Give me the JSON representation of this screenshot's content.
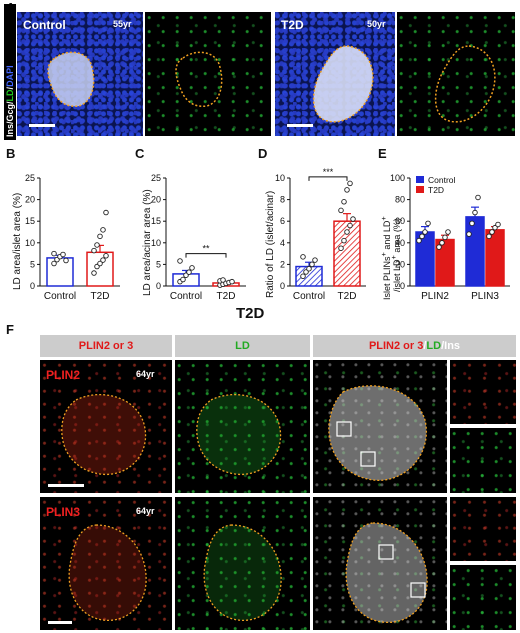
{
  "panels": {
    "A": "A",
    "B": "B",
    "C": "C",
    "D": "D",
    "E": "E",
    "F": "F"
  },
  "panelA": {
    "side_label_ins": "Ins",
    "side_label_gcg": "Gcg",
    "side_label_ld": "LD",
    "side_label_dapi": "DAPI",
    "control_label": "Control",
    "control_age": "55yr",
    "t2d_label": "T2D",
    "t2d_age": "50yr"
  },
  "panelF": {
    "title": "T2D",
    "col1": "PLIN2 or 3",
    "col2": "LD",
    "col3_a": "PLIN2 or 3",
    "col3_b": "LD",
    "col3_c": "Ins",
    "row1_label": "PLIN2",
    "row1_age": "64yr",
    "row2_label": "PLIN3",
    "row2_age": "64yr"
  },
  "colors": {
    "control": "#1f2bd6",
    "t2d": "#e01919",
    "outline": "#f0a020"
  },
  "chart_data": [
    {
      "id": "B",
      "type": "bar",
      "ylabel": "LD area/islet area (%)",
      "categories": [
        "Control",
        "T2D"
      ],
      "values": [
        6.5,
        7.8
      ],
      "errors": [
        0.6,
        1.6
      ],
      "ylim": [
        0,
        25
      ],
      "yticks": [
        0,
        5,
        10,
        15,
        20,
        25
      ],
      "points": [
        [
          5.2,
          6.1,
          6.8,
          7.3,
          5.9,
          7.5
        ],
        [
          3.0,
          4.5,
          5.2,
          6.0,
          7.0,
          8.2,
          9.5,
          11.5,
          13.0,
          17.0
        ]
      ]
    },
    {
      "id": "C",
      "type": "bar",
      "ylabel": "LD area/acinar area (%)",
      "categories": [
        "Control",
        "T2D"
      ],
      "values": [
        2.8,
        0.7
      ],
      "errors": [
        0.8,
        0.2
      ],
      "ylim": [
        0,
        25
      ],
      "yticks": [
        0,
        5,
        10,
        15,
        20,
        25
      ],
      "points": [
        [
          1.0,
          1.5,
          2.5,
          3.2,
          4.2,
          5.8
        ],
        [
          0.2,
          0.4,
          0.6,
          0.8,
          1.0,
          1.2,
          1.4
        ]
      ],
      "significance": "**"
    },
    {
      "id": "D",
      "type": "bar",
      "ylabel": "Ratio of LD (islet/acinar)",
      "categories": [
        "Control",
        "T2D"
      ],
      "values": [
        1.8,
        6.0
      ],
      "errors": [
        0.4,
        0.7
      ],
      "ylim": [
        0,
        10
      ],
      "yticks": [
        0,
        2,
        4,
        6,
        8,
        10
      ],
      "points": [
        [
          0.9,
          1.3,
          1.6,
          2.0,
          2.4,
          2.7
        ],
        [
          3.5,
          4.2,
          5.0,
          5.6,
          6.2,
          7.0,
          7.8,
          8.9,
          9.5
        ]
      ],
      "significance": "***"
    },
    {
      "id": "E",
      "type": "bar",
      "ylabel": "Islet PLINs+ and LD+ /islet LD+ area (%)",
      "categories": [
        "PLIN2",
        "PLIN3"
      ],
      "series": [
        {
          "name": "Control",
          "values": [
            50,
            64
          ],
          "errors": [
            5,
            9
          ],
          "points": [
            [
              42,
              46,
              50,
              58
            ],
            [
              48,
              58,
              68,
              82
            ]
          ]
        },
        {
          "name": "T2D",
          "values": [
            43,
            52
          ],
          "errors": [
            4,
            3
          ],
          "points": [
            [
              36,
              40,
              45,
              50
            ],
            [
              46,
              50,
              54,
              57
            ]
          ]
        }
      ],
      "ylim": [
        0,
        100
      ],
      "yticks": [
        0,
        20,
        40,
        60,
        80,
        100
      ],
      "legend": "top-left"
    }
  ]
}
